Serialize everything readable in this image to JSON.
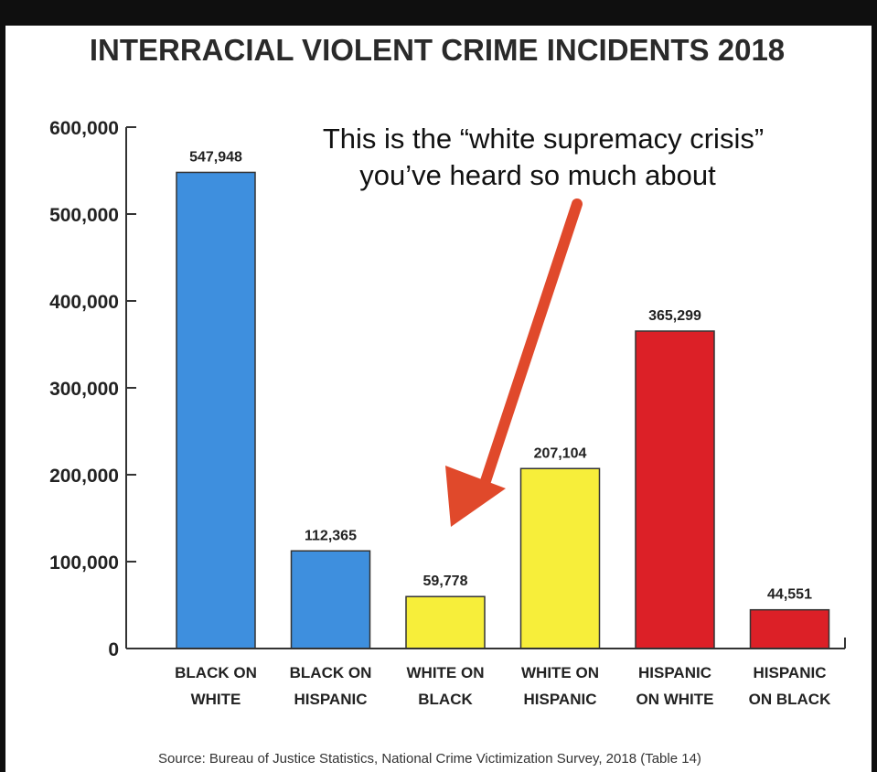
{
  "chart_data": {
    "type": "bar",
    "title": "INTERRACIAL VIOLENT CRIME INCIDENTS 2018",
    "categories": [
      [
        "BLACK ON",
        "WHITE"
      ],
      [
        "BLACK ON",
        "HISPANIC"
      ],
      [
        "WHITE ON",
        "BLACK"
      ],
      [
        "WHITE ON",
        "HISPANIC"
      ],
      [
        "HISPANIC",
        "ON WHITE"
      ],
      [
        "HISPANIC",
        "ON BLACK"
      ]
    ],
    "values": [
      547948,
      112365,
      59778,
      207104,
      365299,
      44551
    ],
    "value_labels": [
      "547,948",
      "112,365",
      "59,778",
      "207,104",
      "365,299",
      "44,551"
    ],
    "bar_colors": [
      "#3e8fde",
      "#3e8fde",
      "#f7ee3a",
      "#f7ee3a",
      "#dc2027",
      "#dc2027"
    ],
    "ylim": [
      0,
      600000
    ],
    "yticks": [
      0,
      100000,
      200000,
      300000,
      400000,
      500000,
      600000
    ],
    "ytick_labels": [
      "0",
      "100,000",
      "200,000",
      "300,000",
      "400,000",
      "500,000",
      "600,000"
    ],
    "xlabel": "",
    "ylabel": "",
    "grid": false,
    "annotation": {
      "lines": [
        "This is the “white supremacy crisis”",
        "you’ve heard so much about"
      ],
      "arrow_color": "#e0492b",
      "points_to": [
        "WHITE ON",
        "BLACK"
      ]
    },
    "source": "Source: Bureau of Justice Statistics, National Crime Victimization Survey, 2018 (Table 14)"
  }
}
